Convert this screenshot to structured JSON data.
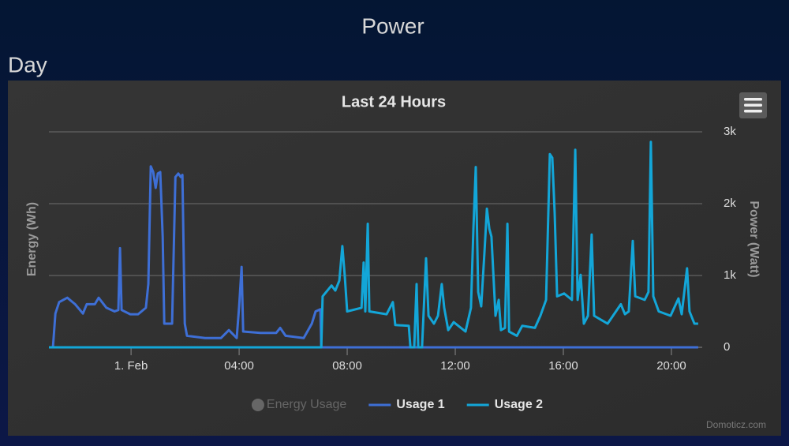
{
  "header": {
    "title": "Power",
    "section": "Day"
  },
  "chart_data": {
    "type": "line",
    "title": "Last 24 Hours",
    "y_axis_title": "Energy (Wh)",
    "y2_axis_title": "Power (Watt)",
    "credit": "Domoticz.com",
    "xlim": [
      -3.04,
      21.14
    ],
    "xticks": [
      {
        "value": 0,
        "label": "1. Feb"
      },
      {
        "value": 4,
        "label": "04:00"
      },
      {
        "value": 8,
        "label": "08:00"
      },
      {
        "value": 12,
        "label": "12:00"
      },
      {
        "value": 16,
        "label": "16:00"
      },
      {
        "value": 20,
        "label": "20:00"
      }
    ],
    "y2lim": [
      0,
      3000
    ],
    "y2ticks": [
      0,
      {
        "value": 1000,
        "label": "1k"
      },
      {
        "value": 2000,
        "label": "2k"
      },
      {
        "value": 3000,
        "label": "3k"
      }
    ],
    "grid": true,
    "hidden_series": [
      {
        "name": "Energy Usage",
        "color": "#666666"
      }
    ],
    "series": [
      {
        "name": "Usage 1",
        "color": "#3e6fd6",
        "axis": "y2",
        "x": [
          -2.89,
          -2.8,
          -2.66,
          -2.36,
          -2.07,
          -1.78,
          -1.64,
          -1.34,
          -1.2,
          -0.91,
          -0.61,
          -0.47,
          -0.41,
          -0.35,
          -0.03,
          0.26,
          0.55,
          0.64,
          0.73,
          0.82,
          0.91,
          0.99,
          1.08,
          1.17,
          1.23,
          1.52,
          1.64,
          1.75,
          1.84,
          1.9,
          1.99,
          2.07,
          2.74,
          3.33,
          3.62,
          3.91,
          4.0,
          4.09,
          4.15,
          4.79,
          5.37,
          5.52,
          5.72,
          6.39,
          6.69,
          6.83,
          7.01,
          7.04,
          20.99
        ],
        "values": [
          0,
          470,
          630,
          690,
          600,
          470,
          600,
          600,
          690,
          550,
          500,
          520,
          1380,
          520,
          460,
          460,
          550,
          880,
          2520,
          2440,
          2220,
          2420,
          2440,
          1540,
          330,
          330,
          2370,
          2420,
          2370,
          2400,
          330,
          160,
          130,
          130,
          240,
          130,
          570,
          1120,
          220,
          200,
          200,
          270,
          160,
          130,
          330,
          500,
          530,
          0,
          0
        ]
      },
      {
        "name": "Usage 2",
        "color": "#13a6d8",
        "axis": "y2",
        "x": [
          -3.04,
          7.04,
          7.09,
          7.42,
          7.56,
          7.71,
          7.82,
          7.91,
          8.0,
          8.53,
          8.61,
          8.67,
          8.76,
          8.82,
          9.46,
          9.69,
          9.78,
          10.28,
          10.34,
          10.48,
          10.57,
          10.63,
          10.77,
          10.92,
          11.01,
          11.21,
          11.36,
          11.5,
          11.59,
          11.74,
          11.94,
          12.38,
          12.58,
          12.67,
          12.76,
          12.85,
          12.96,
          13.08,
          13.17,
          13.26,
          13.34,
          13.49,
          13.61,
          13.69,
          13.84,
          13.93,
          13.99,
          14.28,
          14.48,
          14.95,
          15.15,
          15.36,
          15.5,
          15.59,
          15.68,
          15.77,
          16.03,
          16.32,
          16.44,
          16.53,
          16.64,
          16.76,
          16.91,
          17.05,
          17.14,
          17.64,
          18.13,
          18.28,
          18.42,
          18.57,
          18.66,
          19.01,
          19.15,
          19.24,
          19.33,
          19.53,
          19.97,
          20.26,
          20.38,
          20.58,
          20.67,
          20.85,
          20.99
        ],
        "values": [
          0,
          0,
          710,
          860,
          790,
          930,
          1410,
          990,
          500,
          550,
          1180,
          500,
          1720,
          500,
          460,
          630,
          310,
          300,
          0,
          0,
          880,
          0,
          0,
          1240,
          440,
          330,
          440,
          880,
          550,
          240,
          350,
          220,
          550,
          1650,
          2510,
          770,
          570,
          1320,
          1930,
          1650,
          1540,
          440,
          660,
          240,
          270,
          1720,
          220,
          160,
          300,
          270,
          440,
          660,
          2690,
          2640,
          1870,
          710,
          750,
          660,
          2750,
          660,
          1010,
          330,
          440,
          1570,
          440,
          330,
          600,
          460,
          500,
          1480,
          710,
          660,
          770,
          2860,
          710,
          500,
          440,
          680,
          460,
          1100,
          500,
          330,
          330
        ]
      }
    ]
  }
}
